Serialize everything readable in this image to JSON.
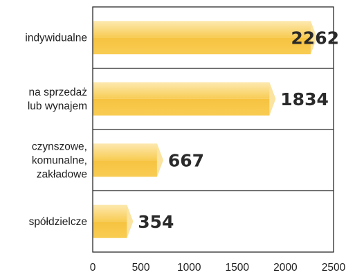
{
  "chart_data": {
    "type": "bar",
    "orientation": "horizontal",
    "title": "",
    "xlabel": "",
    "ylabel": "",
    "categories": [
      [
        "indywidualne"
      ],
      [
        "na sprzedaż",
        "lub wynajem"
      ],
      [
        "czynszowe,",
        "komunalne,",
        "zakładowe"
      ],
      [
        "spółdzielcze"
      ]
    ],
    "values": [
      2262,
      1834,
      667,
      354
    ],
    "xlim": [
      0,
      2500
    ],
    "xticks": [
      0,
      500,
      1000,
      1500,
      2000,
      2500
    ],
    "grid": false,
    "legend": "none",
    "colors": {
      "bar_top": "#f8cc53",
      "bar_bottom": "#f7c340",
      "bar_face": "#fbe4a0",
      "bar_highlight": "#fde9b0",
      "axis": "#2a2a2a",
      "text": "#1e1e1e"
    }
  }
}
